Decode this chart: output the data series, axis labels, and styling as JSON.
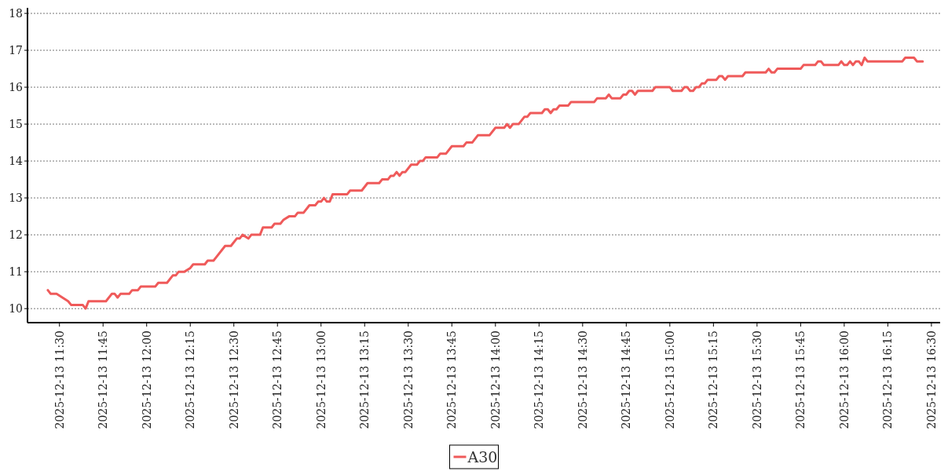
{
  "chart_data": {
    "type": "line",
    "x": [
      "2025-12-13T11:26",
      "2025-12-13T11:27",
      "2025-12-13T11:29",
      "2025-12-13T11:31",
      "2025-12-13T11:33",
      "2025-12-13T11:34",
      "2025-12-13T11:38",
      "2025-12-13T11:39",
      "2025-12-13T11:40",
      "2025-12-13T11:46",
      "2025-12-13T11:48",
      "2025-12-13T11:49",
      "2025-12-13T11:50",
      "2025-12-13T11:51",
      "2025-12-13T11:54",
      "2025-12-13T11:55",
      "2025-12-13T11:57",
      "2025-12-13T11:58",
      "2025-12-13T12:03",
      "2025-12-13T12:04",
      "2025-12-13T12:07",
      "2025-12-13T12:09",
      "2025-12-13T12:10",
      "2025-12-13T12:11",
      "2025-12-13T12:13",
      "2025-12-13T12:15",
      "2025-12-13T12:16",
      "2025-12-13T12:20",
      "2025-12-13T12:21",
      "2025-12-13T12:23",
      "2025-12-13T12:24",
      "2025-12-13T12:27",
      "2025-12-13T12:29",
      "2025-12-13T12:31",
      "2025-12-13T12:32",
      "2025-12-13T12:33",
      "2025-12-13T12:35",
      "2025-12-13T12:36",
      "2025-12-13T12:39",
      "2025-12-13T12:40",
      "2025-12-13T12:43",
      "2025-12-13T12:44",
      "2025-12-13T12:46",
      "2025-12-13T12:47",
      "2025-12-13T12:49",
      "2025-12-13T12:51",
      "2025-12-13T12:52",
      "2025-12-13T12:54",
      "2025-12-13T12:56",
      "2025-12-13T12:58",
      "2025-12-13T12:59",
      "2025-12-13T13:00",
      "2025-12-13T13:01",
      "2025-12-13T13:02",
      "2025-12-13T13:03",
      "2025-12-13T13:04",
      "2025-12-13T13:09",
      "2025-12-13T13:10",
      "2025-12-13T13:14",
      "2025-12-13T13:16",
      "2025-12-13T13:20",
      "2025-12-13T13:21",
      "2025-12-13T13:23",
      "2025-12-13T13:24",
      "2025-12-13T13:25",
      "2025-12-13T13:26",
      "2025-12-13T13:27",
      "2025-12-13T13:28",
      "2025-12-13T13:29",
      "2025-12-13T13:31",
      "2025-12-13T13:33",
      "2025-12-13T13:34",
      "2025-12-13T13:35",
      "2025-12-13T13:36",
      "2025-12-13T13:40",
      "2025-12-13T13:41",
      "2025-12-13T13:43",
      "2025-12-13T13:45",
      "2025-12-13T13:49",
      "2025-12-13T13:50",
      "2025-12-13T13:52",
      "2025-12-13T13:54",
      "2025-12-13T13:58",
      "2025-12-13T14:00",
      "2025-12-13T14:03",
      "2025-12-13T14:04",
      "2025-12-13T14:05",
      "2025-12-13T14:06",
      "2025-12-13T14:08",
      "2025-12-13T14:10",
      "2025-12-13T14:11",
      "2025-12-13T14:12",
      "2025-12-13T14:16",
      "2025-12-13T14:17",
      "2025-12-13T14:18",
      "2025-12-13T14:19",
      "2025-12-13T14:20",
      "2025-12-13T14:21",
      "2025-12-13T14:22",
      "2025-12-13T14:25",
      "2025-12-13T14:26",
      "2025-12-13T14:34",
      "2025-12-13T14:35",
      "2025-12-13T14:38",
      "2025-12-13T14:39",
      "2025-12-13T14:40",
      "2025-12-13T14:43",
      "2025-12-13T14:44",
      "2025-12-13T14:45",
      "2025-12-13T14:46",
      "2025-12-13T14:47",
      "2025-12-13T14:48",
      "2025-12-13T14:49",
      "2025-12-13T14:54",
      "2025-12-13T14:55",
      "2025-12-13T15:00",
      "2025-12-13T15:01",
      "2025-12-13T15:04",
      "2025-12-13T15:05",
      "2025-12-13T15:06",
      "2025-12-13T15:07",
      "2025-12-13T15:08",
      "2025-12-13T15:09",
      "2025-12-13T15:10",
      "2025-12-13T15:11",
      "2025-12-13T15:12",
      "2025-12-13T15:13",
      "2025-12-13T15:16",
      "2025-12-13T15:17",
      "2025-12-13T15:18",
      "2025-12-13T15:19",
      "2025-12-13T15:20",
      "2025-12-13T15:25",
      "2025-12-13T15:26",
      "2025-12-13T15:33",
      "2025-12-13T15:34",
      "2025-12-13T15:35",
      "2025-12-13T15:36",
      "2025-12-13T15:37",
      "2025-12-13T15:45",
      "2025-12-13T15:46",
      "2025-12-13T15:50",
      "2025-12-13T15:51",
      "2025-12-13T15:52",
      "2025-12-13T15:53",
      "2025-12-13T15:58",
      "2025-12-13T15:59",
      "2025-12-13T16:00",
      "2025-12-13T16:01",
      "2025-12-13T16:02",
      "2025-12-13T16:03",
      "2025-12-13T16:04",
      "2025-12-13T16:05",
      "2025-12-13T16:06",
      "2025-12-13T16:07",
      "2025-12-13T16:08",
      "2025-12-13T16:20",
      "2025-12-13T16:21",
      "2025-12-13T16:24",
      "2025-12-13T16:25",
      "2025-12-13T16:27"
    ],
    "series": [
      {
        "name": "A30",
        "color": "#ef5a5a",
        "values": [
          10.5,
          10.4,
          10.4,
          10.3,
          10.2,
          10.1,
          10.1,
          10.0,
          10.2,
          10.2,
          10.4,
          10.4,
          10.3,
          10.4,
          10.4,
          10.5,
          10.5,
          10.6,
          10.6,
          10.7,
          10.7,
          10.9,
          10.9,
          11.0,
          11.0,
          11.1,
          11.2,
          11.2,
          11.3,
          11.3,
          11.4,
          11.7,
          11.7,
          11.9,
          11.9,
          12.0,
          11.9,
          12.0,
          12.0,
          12.2,
          12.2,
          12.3,
          12.3,
          12.4,
          12.5,
          12.5,
          12.6,
          12.6,
          12.8,
          12.8,
          12.9,
          12.9,
          13.0,
          12.9,
          12.9,
          13.1,
          13.1,
          13.2,
          13.2,
          13.4,
          13.4,
          13.5,
          13.5,
          13.6,
          13.6,
          13.7,
          13.6,
          13.7,
          13.7,
          13.9,
          13.9,
          14.0,
          14.0,
          14.1,
          14.1,
          14.2,
          14.2,
          14.4,
          14.4,
          14.5,
          14.5,
          14.7,
          14.7,
          14.9,
          14.9,
          15.0,
          14.9,
          15.0,
          15.0,
          15.2,
          15.2,
          15.3,
          15.3,
          15.4,
          15.4,
          15.3,
          15.4,
          15.4,
          15.5,
          15.5,
          15.6,
          15.6,
          15.7,
          15.7,
          15.8,
          15.7,
          15.7,
          15.8,
          15.8,
          15.9,
          15.9,
          15.8,
          15.9,
          15.9,
          16.0,
          16.0,
          15.9,
          15.9,
          16.0,
          16.0,
          15.9,
          15.9,
          16.0,
          16.0,
          16.1,
          16.1,
          16.2,
          16.2,
          16.3,
          16.3,
          16.2,
          16.3,
          16.3,
          16.4,
          16.4,
          16.5,
          16.4,
          16.4,
          16.5,
          16.5,
          16.6,
          16.6,
          16.7,
          16.7,
          16.6,
          16.6,
          16.7,
          16.6,
          16.6,
          16.7,
          16.6,
          16.7,
          16.7,
          16.6,
          16.8,
          16.7,
          16.7,
          16.8,
          16.8,
          16.7,
          16.7
        ]
      }
    ],
    "xlim": [
      "2025-12-13T11:19",
      "2025-12-13T16:33"
    ],
    "xticks": [
      {
        "value": "2025-12-13T11:30",
        "label": "2025-12-13 11:30"
      },
      {
        "value": "2025-12-13T11:45",
        "label": "2025-12-13 11:45"
      },
      {
        "value": "2025-12-13T12:00",
        "label": "2025-12-13 12:00"
      },
      {
        "value": "2025-12-13T12:15",
        "label": "2025-12-13 12:15"
      },
      {
        "value": "2025-12-13T12:30",
        "label": "2025-12-13 12:30"
      },
      {
        "value": "2025-12-13T12:45",
        "label": "2025-12-13 12:45"
      },
      {
        "value": "2025-12-13T13:00",
        "label": "2025-12-13 13:00"
      },
      {
        "value": "2025-12-13T13:15",
        "label": "2025-12-13 13:15"
      },
      {
        "value": "2025-12-13T13:30",
        "label": "2025-12-13 13:30"
      },
      {
        "value": "2025-12-13T13:45",
        "label": "2025-12-13 13:45"
      },
      {
        "value": "2025-12-13T14:00",
        "label": "2025-12-13 14:00"
      },
      {
        "value": "2025-12-13T14:15",
        "label": "2025-12-13 14:15"
      },
      {
        "value": "2025-12-13T14:30",
        "label": "2025-12-13 14:30"
      },
      {
        "value": "2025-12-13T14:45",
        "label": "2025-12-13 14:45"
      },
      {
        "value": "2025-12-13T15:00",
        "label": "2025-12-13 15:00"
      },
      {
        "value": "2025-12-13T15:15",
        "label": "2025-12-13 15:15"
      },
      {
        "value": "2025-12-13T15:30",
        "label": "2025-12-13 15:30"
      },
      {
        "value": "2025-12-13T15:45",
        "label": "2025-12-13 15:45"
      },
      {
        "value": "2025-12-13T16:00",
        "label": "2025-12-13 16:00"
      },
      {
        "value": "2025-12-13T16:15",
        "label": "2025-12-13 16:15"
      },
      {
        "value": "2025-12-13T16:30",
        "label": "2025-12-13 16:30"
      }
    ],
    "ylim": [
      9.62,
      18.15
    ],
    "yticks": [
      10,
      11,
      12,
      13,
      14,
      15,
      16,
      17,
      18
    ],
    "grid": "y",
    "legend": "bottom",
    "line_style": "solid",
    "marker": "none"
  }
}
